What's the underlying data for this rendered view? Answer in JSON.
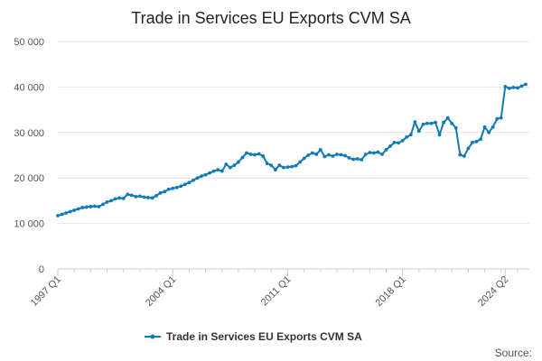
{
  "chart_data": {
    "type": "line",
    "title": "Trade in Services EU Exports CVM SA",
    "xlabel": "",
    "ylabel": "",
    "ylim": [
      0,
      50000
    ],
    "yticks": [
      0,
      10000,
      20000,
      30000,
      40000,
      50000
    ],
    "ytick_labels": [
      "0",
      "10 000",
      "20 000",
      "30 000",
      "40 000",
      "50 000"
    ],
    "xtick_labels": [
      "1997 Q1",
      "2004 Q1",
      "2011 Q1",
      "2018 Q1",
      "2024 Q2"
    ],
    "xtick_index": [
      0,
      28,
      56,
      84,
      109
    ],
    "grid": "horizontal",
    "legend": "bottom-center",
    "color": "#0f7ab8",
    "source_label": "Source:",
    "series": [
      {
        "name": "Trade in Services EU Exports CVM SA",
        "start": "1997 Q1",
        "values": [
          11700,
          12000,
          12300,
          12600,
          12900,
          13200,
          13500,
          13600,
          13700,
          13800,
          13700,
          14200,
          14700,
          15000,
          15400,
          15600,
          15500,
          16400,
          16200,
          15900,
          16000,
          15800,
          15700,
          15600,
          16100,
          16700,
          17000,
          17500,
          17700,
          17900,
          18200,
          18600,
          19000,
          19500,
          20000,
          20400,
          20700,
          21100,
          21500,
          21800,
          21500,
          23000,
          22300,
          22800,
          23500,
          24500,
          25500,
          25200,
          25100,
          25300,
          24800,
          23200,
          22800,
          21800,
          22800,
          22300,
          22400,
          22500,
          22700,
          23500,
          24300,
          25000,
          25500,
          25200,
          26200,
          24700,
          25100,
          24800,
          25200,
          25100,
          24900,
          24400,
          24100,
          24200,
          24000,
          25200,
          25600,
          25500,
          25700,
          25200,
          26200,
          27000,
          27800,
          27700,
          28200,
          29000,
          29500,
          32300,
          30300,
          31800,
          32000,
          32000,
          32200,
          29500,
          32200,
          33200,
          32000,
          31000,
          25100,
          24800,
          26500,
          27800,
          28000,
          28500,
          31200,
          30000,
          31200,
          33000,
          33200,
          40100,
          39700,
          39900,
          39800,
          40200,
          40600
        ]
      }
    ]
  }
}
